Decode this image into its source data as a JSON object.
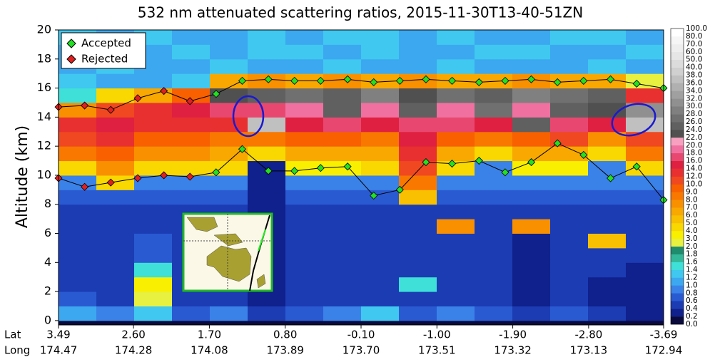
{
  "chart_data": {
    "type": "heatmap",
    "title": "532 nm attenuated scattering ratios, 2015-11-30T13-40-51ZN",
    "ylabel": "Altitude (km)",
    "xlim": [
      3.49,
      -3.69
    ],
    "ylim": [
      -0.3,
      20
    ],
    "yticks": [
      0,
      2,
      4,
      6,
      8,
      10,
      12,
      14,
      16,
      18,
      20
    ],
    "xticks": [
      3.49,
      {
        "value": 2.6,
        "label": "2.60"
      },
      {
        "value": 1.7,
        "label": "1.70"
      },
      {
        "value": 0.8,
        "label": "0.80"
      },
      {
        "value": -0.1,
        "label": "-0.10"
      },
      {
        "value": -1,
        "label": "-1.00"
      },
      {
        "value": -1.9,
        "label": "-1.90"
      },
      {
        "value": -2.8,
        "label": "-2.80"
      },
      -3.69
    ],
    "x_row_labels": [
      "Lat",
      "Long"
    ],
    "x_long_labels": [
      "174.47",
      "174.28",
      "174.08",
      "173.89",
      "173.70",
      "173.51",
      "173.32",
      "173.13",
      "172.94"
    ],
    "y_edges": [
      0,
      1,
      2,
      3,
      4,
      5,
      6,
      7,
      8,
      9,
      10,
      11,
      12,
      13,
      14,
      15,
      16,
      17,
      18,
      19,
      20
    ],
    "z": [
      [
        1.0,
        0.8,
        1.2,
        0.6,
        0.8,
        0.4,
        0.6,
        0.8,
        1.2,
        0.6,
        0.8,
        0.6,
        0.4,
        0.6,
        0.4,
        0.2
      ],
      [
        0.6,
        0.5,
        2.5,
        0.5,
        0.5,
        0.3,
        0.5,
        0.5,
        0.5,
        0.5,
        0.5,
        0.5,
        0.3,
        0.5,
        0.3,
        0.2
      ],
      [
        0.5,
        0.5,
        3.5,
        0.5,
        0.5,
        0.3,
        0.5,
        0.5,
        0.5,
        1.5,
        0.5,
        0.5,
        0.3,
        0.5,
        0.3,
        0.3
      ],
      [
        0.5,
        0.5,
        1.5,
        0.5,
        0.5,
        0.3,
        0.5,
        0.5,
        0.5,
        0.5,
        0.5,
        0.5,
        0.3,
        0.5,
        0.5,
        0.3
      ],
      [
        0.5,
        0.5,
        0.7,
        0.5,
        0.5,
        0.3,
        0.5,
        0.5,
        0.5,
        0.5,
        0.5,
        0.5,
        0.3,
        0.5,
        0.5,
        0.5
      ],
      [
        0.5,
        0.5,
        0.7,
        0.5,
        0.5,
        0.3,
        0.5,
        0.5,
        0.5,
        0.5,
        0.5,
        0.5,
        0.3,
        0.5,
        5.0,
        0.5
      ],
      [
        0.5,
        0.5,
        0.5,
        0.5,
        0.5,
        0.3,
        0.5,
        0.5,
        0.5,
        0.5,
        7.0,
        0.5,
        7.0,
        0.5,
        0.5,
        0.5
      ],
      [
        0.5,
        0.5,
        0.5,
        0.5,
        0.5,
        0.3,
        0.5,
        0.5,
        0.5,
        0.5,
        0.5,
        0.5,
        0.5,
        0.5,
        0.5,
        0.5
      ],
      [
        0.6,
        0.6,
        0.6,
        0.6,
        0.6,
        0.3,
        0.6,
        0.6,
        0.6,
        5.0,
        0.6,
        0.6,
        0.6,
        0.6,
        0.6,
        0.6
      ],
      [
        0.8,
        4.0,
        0.8,
        0.8,
        0.8,
        0.3,
        0.8,
        0.8,
        0.8,
        8.0,
        0.8,
        0.8,
        0.8,
        0.8,
        0.8,
        0.8
      ],
      [
        4.0,
        7.0,
        4.0,
        4.0,
        4.0,
        0.3,
        3.0,
        3.0,
        4.0,
        10.0,
        4.0,
        0.8,
        3.0,
        3.0,
        0.8,
        4.0
      ],
      [
        8.0,
        9.0,
        7.0,
        7.0,
        6.0,
        4.0,
        6.0,
        6.0,
        6.0,
        12.0,
        6.0,
        4.0,
        6.0,
        6.0,
        4.0,
        8.0
      ],
      [
        10.0,
        12.0,
        9.0,
        9.0,
        8.0,
        8.0,
        9.0,
        9.0,
        8.0,
        14.0,
        9.0,
        8.0,
        9.0,
        10.0,
        7.0,
        10.0
      ],
      [
        12.0,
        14.0,
        12.0,
        12.0,
        12.0,
        37.0,
        14.0,
        16.0,
        14.0,
        16.0,
        16.0,
        14.0,
        25.0,
        16.0,
        14.0,
        37.0
      ],
      [
        7.0,
        10.0,
        12.0,
        14.0,
        16.0,
        16.0,
        18.0,
        25.0,
        18.0,
        25.0,
        18.0,
        27.0,
        18.0,
        25.0,
        23.0,
        30.0
      ],
      [
        1.5,
        4.0,
        6.0,
        9.0,
        23.0,
        25.0,
        27.0,
        25.0,
        29.0,
        23.0,
        27.0,
        25.0,
        29.0,
        27.0,
        25.0,
        12.0
      ],
      [
        1.2,
        1.0,
        1.0,
        1.3,
        6.0,
        7.0,
        6.0,
        7.0,
        6.0,
        7.0,
        6.0,
        6.0,
        7.0,
        6.0,
        6.0,
        2.0
      ],
      [
        1.0,
        1.2,
        1.1,
        1.0,
        1.2,
        1.0,
        1.1,
        1.2,
        1.0,
        1.1,
        1.2,
        1.0,
        1.1,
        1.0,
        1.2,
        1.1
      ],
      [
        1.1,
        1.3,
        1.0,
        1.2,
        1.1,
        1.3,
        1.2,
        1.0,
        1.3,
        1.1,
        1.0,
        1.2,
        1.3,
        1.1,
        1.0,
        1.2
      ],
      [
        1.2,
        1.0,
        1.3,
        1.1,
        1.0,
        1.2,
        1.1,
        1.3,
        1.2,
        1.0,
        1.3,
        1.1,
        1.0,
        1.2,
        1.3,
        1.1
      ]
    ],
    "colorbar": {
      "levels": [
        {
          "value": 0,
          "label": "0.0"
        },
        {
          "value": 0.2,
          "label": "0.2"
        },
        {
          "value": 0.4,
          "label": "0.4"
        },
        {
          "value": 0.6,
          "label": "0.6"
        },
        {
          "value": 0.8,
          "label": "0.8"
        },
        {
          "value": 1,
          "label": "1.0"
        },
        {
          "value": 1.2,
          "label": "1.2"
        },
        {
          "value": 1.4,
          "label": "1.4"
        },
        {
          "value": 1.6,
          "label": "1.6"
        },
        {
          "value": 1.8,
          "label": "1.8"
        },
        {
          "value": 2,
          "label": "2.0"
        },
        {
          "value": 3,
          "label": "3.0"
        },
        {
          "value": 4,
          "label": "4.0"
        },
        {
          "value": 5,
          "label": "5.0"
        },
        {
          "value": 6,
          "label": "6.0"
        },
        {
          "value": 7,
          "label": "7.0"
        },
        {
          "value": 8,
          "label": "8.0"
        },
        {
          "value": 9,
          "label": "9.0"
        },
        {
          "value": 10,
          "label": "10.0"
        },
        {
          "value": 12,
          "label": "12.0"
        },
        {
          "value": 14,
          "label": "14.0"
        },
        {
          "value": 16,
          "label": "16.0"
        },
        {
          "value": 18,
          "label": "18.0"
        },
        {
          "value": 20,
          "label": "20.0"
        },
        {
          "value": 22,
          "label": "22.0"
        },
        {
          "value": 24,
          "label": "24.0"
        },
        {
          "value": 26,
          "label": "26.0"
        },
        {
          "value": 28,
          "label": "28.0"
        },
        {
          "value": 30,
          "label": "30.0"
        },
        {
          "value": 32,
          "label": "32.0"
        },
        {
          "value": 34,
          "label": "34.0"
        },
        {
          "value": 36,
          "label": "36.0"
        },
        {
          "value": 38,
          "label": "38.0"
        },
        {
          "value": 40,
          "label": "40.0"
        },
        {
          "value": 50,
          "label": "50.0"
        },
        {
          "value": 60,
          "label": "60.0"
        },
        {
          "value": 70,
          "label": "70.0"
        },
        {
          "value": 80,
          "label": "80.0"
        },
        {
          "value": 100,
          "label": "100.0"
        }
      ],
      "colors": [
        "#0a0a3c",
        "#10208c",
        "#1c3cb4",
        "#2a5ad2",
        "#3a82e8",
        "#3ca8f0",
        "#40c8f0",
        "#3ee0d8",
        "#34b89a",
        "#1f8c6e",
        "#e8f040",
        "#f8f000",
        "#f8d800",
        "#f8c000",
        "#f8a800",
        "#f89000",
        "#f87800",
        "#f86000",
        "#f04820",
        "#e83030",
        "#e02040",
        "#e84870",
        "#f070a0",
        "#f8a0c0",
        "#505050",
        "#606060",
        "#707070",
        "#808080",
        "#909090",
        "#a0a0a0",
        "#b0b0b0",
        "#c0c0c0",
        "#d0d0d0",
        "#dcdcdc",
        "#e6e6e6",
        "#eeeeee",
        "#f6f6f6",
        "#ffffff"
      ]
    },
    "boundaries": [
      {
        "x": [
          3.49,
          3.18,
          2.87,
          2.55,
          2.24,
          1.93,
          1.62,
          1.31,
          1.0,
          0.69,
          0.38,
          0.06,
          -0.25,
          -0.56,
          -0.87,
          -1.18,
          -1.5,
          -1.81,
          -2.12,
          -2.43,
          -2.74,
          -3.06,
          -3.37,
          -3.69
        ],
        "values": [
          14.7,
          14.8,
          14.5,
          15.3,
          15.8,
          15.1,
          15.6,
          16.5,
          16.6,
          16.5,
          16.5,
          16.6,
          16.4,
          16.5,
          16.6,
          16.5,
          16.4,
          16.5,
          16.6,
          16.4,
          16.5,
          16.6,
          16.3,
          16.0
        ],
        "accepted": [
          false,
          false,
          false,
          false,
          false,
          false,
          true,
          true,
          true,
          true,
          true,
          true,
          true,
          true,
          true,
          true,
          true,
          true,
          true,
          true,
          true,
          true,
          true,
          true
        ]
      },
      {
        "x": [
          3.49,
          3.18,
          2.87,
          2.55,
          2.24,
          1.93,
          1.62,
          1.31,
          1.0,
          0.69,
          0.38,
          0.06,
          -0.25,
          -0.56,
          -0.87,
          -1.18,
          -1.5,
          -1.81,
          -2.12,
          -2.43,
          -2.74,
          -3.06,
          -3.37,
          -3.69
        ],
        "values": [
          9.8,
          9.2,
          9.5,
          9.8,
          10.0,
          9.9,
          10.2,
          11.8,
          10.3,
          10.3,
          10.5,
          10.6,
          8.6,
          9.0,
          10.9,
          10.8,
          11.0,
          10.2,
          10.9,
          12.2,
          11.4,
          9.8,
          10.6,
          8.3
        ],
        "accepted": [
          false,
          false,
          false,
          false,
          false,
          false,
          true,
          true,
          true,
          true,
          true,
          true,
          true,
          true,
          true,
          true,
          true,
          true,
          true,
          true,
          true,
          true,
          true,
          true
        ]
      }
    ],
    "legend": {
      "position": "upper left",
      "items": [
        {
          "name": "Accepted",
          "color": "#22e022"
        },
        {
          "name": "Rejected",
          "color": "#e02020"
        }
      ]
    }
  }
}
